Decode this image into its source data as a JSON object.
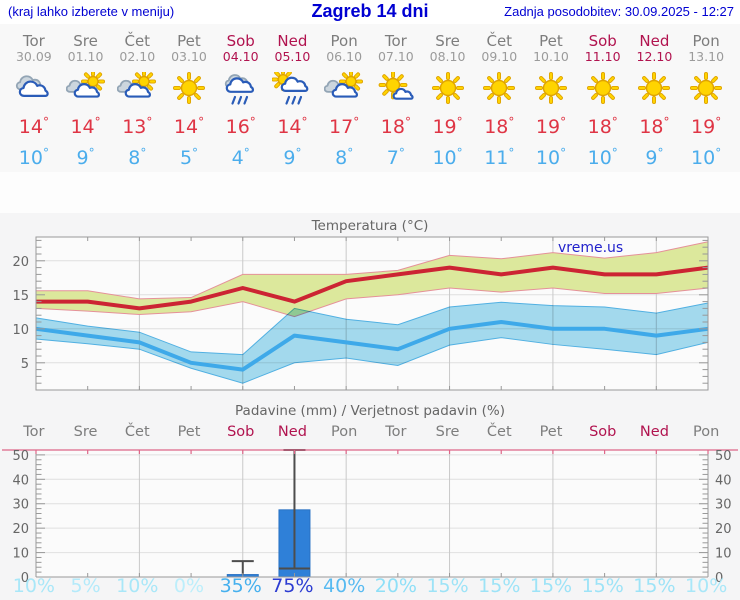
{
  "header": {
    "left_note": "(kraj lahko izberete v meniju)",
    "title": "Zagreb 14 dni",
    "updated": "Zadnja posodobitev: 30.09.2025 - 12:27"
  },
  "watermark": "vreme.us",
  "forecast": {
    "days": [
      {
        "name": "Tor",
        "date": "30.09",
        "weekend": false,
        "icon": "cloudy",
        "tmax": 14,
        "tmin": 10
      },
      {
        "name": "Sre",
        "date": "01.10",
        "weekend": false,
        "icon": "partly",
        "tmax": 14,
        "tmin": 9
      },
      {
        "name": "Čet",
        "date": "02.10",
        "weekend": false,
        "icon": "partly",
        "tmax": 13,
        "tmin": 8
      },
      {
        "name": "Pet",
        "date": "03.10",
        "weekend": false,
        "icon": "sunny",
        "tmax": 14,
        "tmin": 5
      },
      {
        "name": "Sob",
        "date": "04.10",
        "weekend": true,
        "icon": "rain",
        "tmax": 16,
        "tmin": 4
      },
      {
        "name": "Ned",
        "date": "05.10",
        "weekend": true,
        "icon": "sun-rain",
        "tmax": 14,
        "tmin": 9
      },
      {
        "name": "Pon",
        "date": "06.10",
        "weekend": false,
        "icon": "partly",
        "tmax": 17,
        "tmin": 8
      },
      {
        "name": "Tor",
        "date": "07.10",
        "weekend": false,
        "icon": "sun-cloud",
        "tmax": 18,
        "tmin": 7
      },
      {
        "name": "Sre",
        "date": "08.10",
        "weekend": false,
        "icon": "sunny",
        "tmax": 19,
        "tmin": 10
      },
      {
        "name": "Čet",
        "date": "09.10",
        "weekend": false,
        "icon": "sunny",
        "tmax": 18,
        "tmin": 11
      },
      {
        "name": "Pet",
        "date": "10.10",
        "weekend": false,
        "icon": "sunny",
        "tmax": 19,
        "tmin": 10
      },
      {
        "name": "Sob",
        "date": "11.10",
        "weekend": true,
        "icon": "sunny",
        "tmax": 18,
        "tmin": 10
      },
      {
        "name": "Ned",
        "date": "12.10",
        "weekend": true,
        "icon": "sunny",
        "tmax": 18,
        "tmin": 9
      },
      {
        "name": "Pon",
        "date": "13.10",
        "weekend": false,
        "icon": "sunny",
        "tmax": 19,
        "tmin": 10
      }
    ]
  },
  "chart_data": [
    {
      "type": "line",
      "title": "Temperatura (°C)",
      "x_labels": [
        "Tor",
        "Sre",
        "Čet",
        "Pet",
        "Sob",
        "Ned",
        "Pon",
        "Tor",
        "Sre",
        "Čet",
        "Pet",
        "Sob",
        "Ned",
        "Pon"
      ],
      "ylim": [
        1,
        23.5
      ],
      "yticks": [
        5,
        10,
        15,
        20
      ],
      "gridline_days": [
        2,
        4,
        6,
        8,
        10,
        12
      ],
      "series": [
        {
          "name": "tmax",
          "values": [
            14,
            14,
            13,
            14,
            16,
            14,
            17,
            18,
            19,
            18,
            19,
            18,
            18,
            19
          ]
        },
        {
          "name": "tmax_upper",
          "values": [
            15.6,
            15.6,
            14.4,
            14.6,
            18,
            18,
            18,
            18.6,
            20.8,
            20.3,
            21.2,
            20.4,
            21.2,
            22.8
          ]
        },
        {
          "name": "tmax_lower",
          "values": [
            13,
            12.6,
            12.1,
            12.5,
            14,
            11.8,
            14.4,
            15,
            16,
            15.4,
            16,
            15.2,
            15.2,
            16
          ]
        },
        {
          "name": "tmin",
          "values": [
            10,
            9,
            8,
            5,
            4,
            9,
            8,
            7,
            10,
            11,
            10,
            10,
            9,
            10
          ]
        },
        {
          "name": "tmin_upper",
          "values": [
            11.6,
            10.4,
            9.5,
            6.6,
            6.2,
            13,
            11.4,
            10.6,
            13.2,
            13.9,
            13.4,
            13.2,
            12.3,
            13.8
          ]
        },
        {
          "name": "tmin_lower",
          "values": [
            8.5,
            7.8,
            7,
            4.2,
            2,
            5,
            5.7,
            4.6,
            7.6,
            8.7,
            7.7,
            7,
            6.2,
            8
          ]
        }
      ]
    },
    {
      "type": "bar",
      "title": "Padavine (mm) / Verjetnost padavin (%)",
      "x_labels": [
        "Tor",
        "Sre",
        "Čet",
        "Pet",
        "Sob",
        "Ned",
        "Pon",
        "Tor",
        "Sre",
        "Čet",
        "Pet",
        "Sob",
        "Ned",
        "Pon"
      ],
      "ylim": [
        0,
        52
      ],
      "yticks": [
        0,
        10,
        20,
        30,
        40,
        50
      ],
      "gridline_days": [
        2,
        4,
        6,
        8,
        10,
        12
      ],
      "bars": [
        {
          "index": 4,
          "day": "Sob 04.10",
          "mm": 1,
          "whisker_low": 1,
          "whisker_high": 6.5,
          "median": null
        },
        {
          "index": 5,
          "day": "Ned 05.10",
          "mm": 27.5,
          "whisker_low": 3.5,
          "whisker_high": 52,
          "median": 3.5
        }
      ],
      "pop_percent": [
        10,
        5,
        10,
        0,
        35,
        75,
        40,
        20,
        15,
        15,
        15,
        15,
        15,
        10
      ],
      "pop_colors": [
        "#a9e7f8",
        "#b4eafa",
        "#a9e7f8",
        "#bceefb",
        "#46b0ee",
        "#2c3cd2",
        "#57baf1",
        "#8edff7",
        "#9de3f7",
        "#9de3f7",
        "#9de3f7",
        "#9de3f7",
        "#9de3f7",
        "#a9e7f8"
      ]
    }
  ],
  "colors": {
    "header_text": "#0000d2",
    "weekend": "#b1134f",
    "day_label": "#7d7d7d",
    "date_label": "#9b9b9b",
    "tmax_text": "#df3545",
    "tmin_text": "#4badec",
    "line_max": "#cc2433",
    "band_max": "#dce89c",
    "band_max_edge": "#e59199",
    "line_min": "#3ea9e9",
    "band_min": "#a6ddf1",
    "band_min_edge": "#52b3e6",
    "bar": "#2f80d8",
    "bar_edge": "#2a72c4",
    "whisker": "#4d4d4d",
    "grid_h": "#e0e0e0",
    "grid_v": "#c9c9c9",
    "axis": "#999999",
    "axis_label": "#666666",
    "precip_top_border": "#dd6688",
    "icon": {
      "sun": "#ffd400",
      "sun_edge": "#dfa300",
      "cloud_fill": "#ffffff",
      "cloud_stroke": "#2a5cb8",
      "cloud_back_fill": "#ccd6de",
      "cloud_back_stroke": "#93a5b5"
    }
  }
}
